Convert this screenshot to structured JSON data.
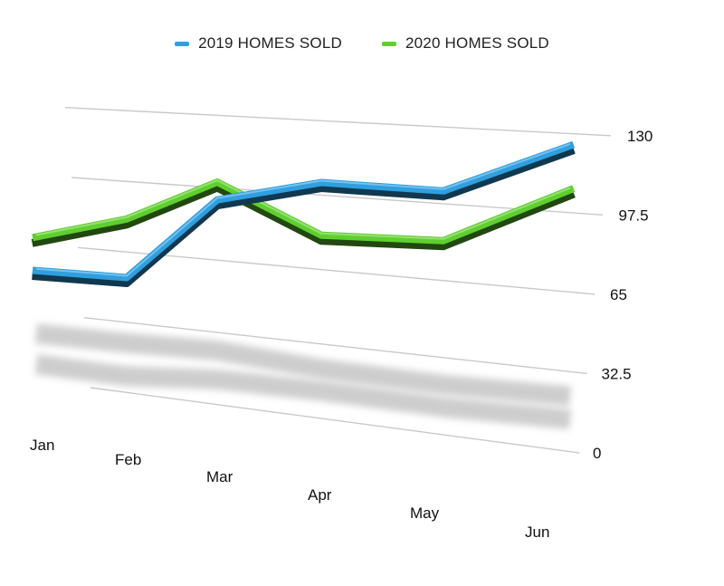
{
  "chart_data": {
    "type": "line",
    "title": "",
    "xlabel": "",
    "ylabel": "",
    "categories": [
      "Jan",
      "Feb",
      "Mar",
      "Apr",
      "May",
      "Jun"
    ],
    "y_ticks": [
      "0",
      "32.5",
      "65",
      "97.5",
      "130"
    ],
    "ylim": [
      0,
      130
    ],
    "grid": true,
    "legend_position": "top",
    "style": "3d-ribbon-with-shadow",
    "series": [
      {
        "name": "2019 HOMES SOLD",
        "color": "#2f9fe0",
        "values": [
          52,
          53,
          92,
          103,
          103,
          125
        ]
      },
      {
        "name": "2020 HOMES SOLD",
        "color": "#5fcf2e",
        "values": [
          68,
          80,
          100,
          80,
          82,
          107
        ]
      }
    ]
  }
}
